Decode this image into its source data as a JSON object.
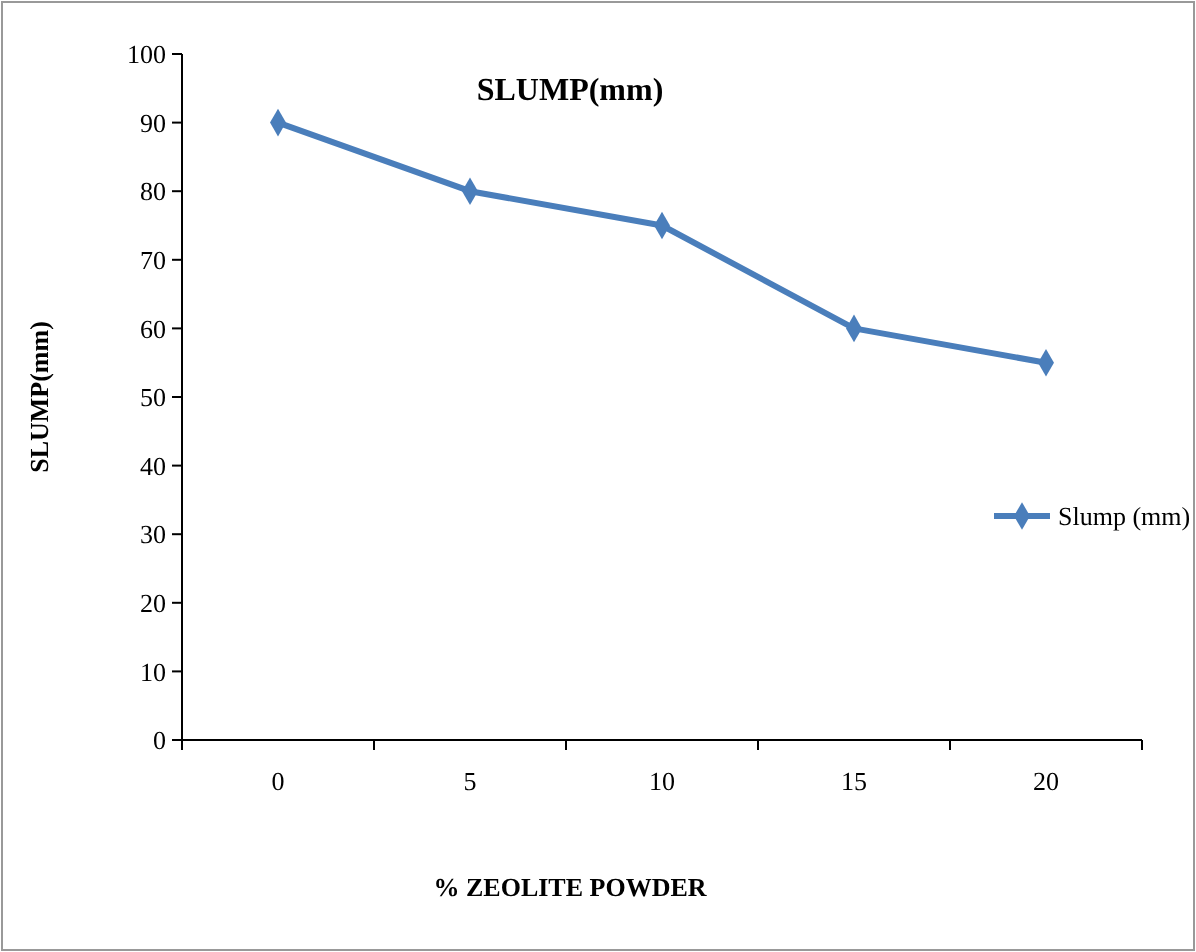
{
  "chart_data": {
    "type": "line",
    "title": "SLUMP(mm)",
    "xlabel": "% ZEOLITE POWDER",
    "ylabel": "SLUMP(mm)",
    "categories": [
      "0",
      "5",
      "10",
      "15",
      "20"
    ],
    "series": [
      {
        "name": "Slump (mm)",
        "color": "#4a7ebb",
        "values": [
          90,
          80,
          75,
          60,
          55
        ]
      }
    ],
    "ylim": [
      0,
      100
    ],
    "yticks": [
      0,
      10,
      20,
      30,
      40,
      50,
      60,
      70,
      80,
      90,
      100
    ],
    "grid": false,
    "legend": "right",
    "marker": "diamond",
    "line_style": "solid"
  }
}
